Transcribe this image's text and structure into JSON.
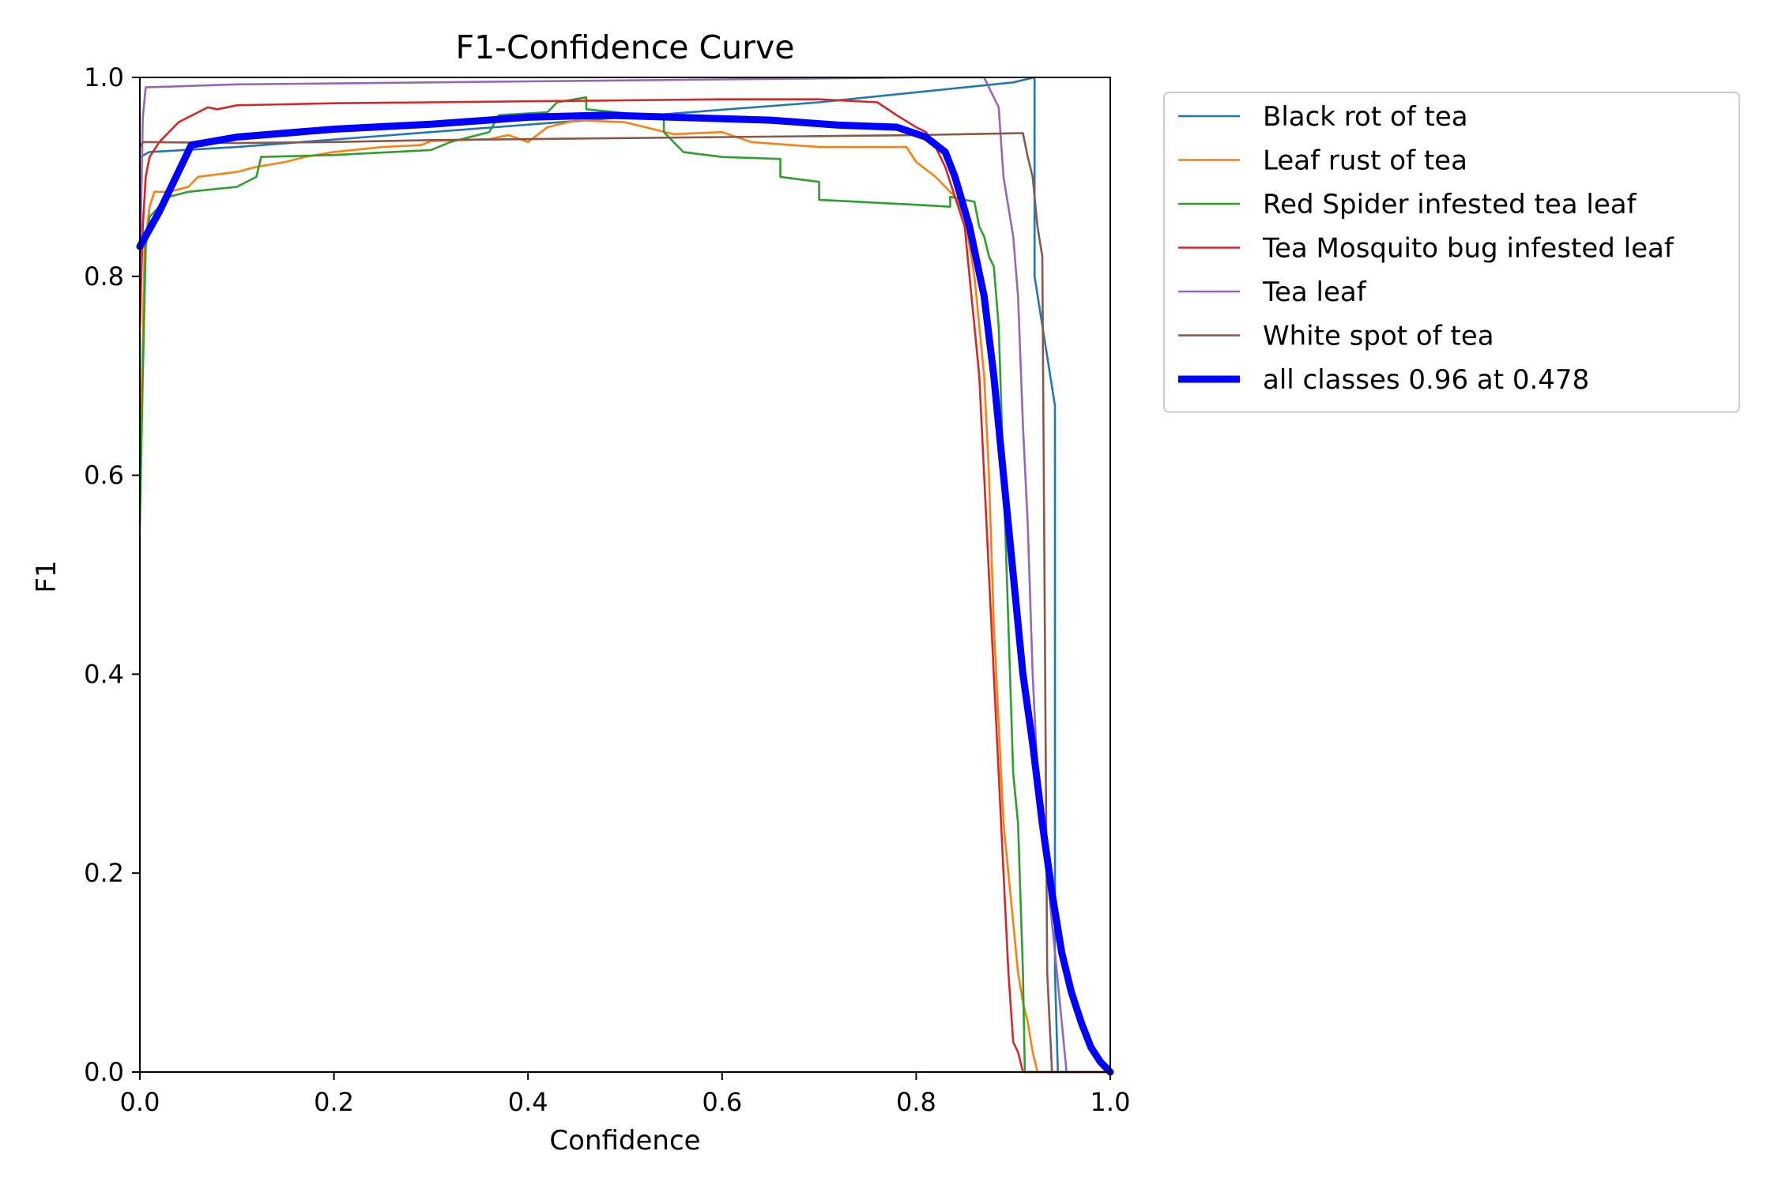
{
  "chart_data": {
    "type": "line",
    "title": "F1-Confidence Curve",
    "xlabel": "Confidence",
    "ylabel": "F1",
    "xlim": [
      0.0,
      1.0
    ],
    "ylim": [
      0.0,
      1.0
    ],
    "grid": false,
    "legend_position": "outside-right",
    "xticks": [
      {
        "value": 0.0,
        "label": "0.0"
      },
      {
        "value": 0.2,
        "label": "0.2"
      },
      {
        "value": 0.4,
        "label": "0.4"
      },
      {
        "value": 0.6,
        "label": "0.6"
      },
      {
        "value": 0.8,
        "label": "0.8"
      },
      {
        "value": 1.0,
        "label": "1.0"
      }
    ],
    "yticks": [
      {
        "value": 0.0,
        "label": "0.0"
      },
      {
        "value": 0.2,
        "label": "0.2"
      },
      {
        "value": 0.4,
        "label": "0.4"
      },
      {
        "value": 0.6,
        "label": "0.6"
      },
      {
        "value": 0.8,
        "label": "0.8"
      },
      {
        "value": 1.0,
        "label": "1.0"
      }
    ],
    "series": [
      {
        "name": "Black rot of tea",
        "color": "#1f77b4",
        "emphasis": false,
        "points": [
          [
            0.0,
            0.92
          ],
          [
            0.01,
            0.925
          ],
          [
            0.1,
            0.93
          ],
          [
            0.3,
            0.945
          ],
          [
            0.5,
            0.96
          ],
          [
            0.7,
            0.975
          ],
          [
            0.9,
            0.995
          ],
          [
            0.922,
            1.0
          ],
          [
            0.922,
            0.8
          ],
          [
            0.943,
            0.67
          ],
          [
            0.943,
            0.1
          ],
          [
            0.946,
            0.0
          ],
          [
            1.0,
            0.0
          ]
        ]
      },
      {
        "name": "Leaf rust of tea",
        "color": "#ff7f0e",
        "emphasis": false,
        "points": [
          [
            0.0,
            0.6
          ],
          [
            0.005,
            0.83
          ],
          [
            0.01,
            0.87
          ],
          [
            0.015,
            0.885
          ],
          [
            0.03,
            0.885
          ],
          [
            0.05,
            0.89
          ],
          [
            0.06,
            0.9
          ],
          [
            0.1,
            0.905
          ],
          [
            0.12,
            0.91
          ],
          [
            0.15,
            0.915
          ],
          [
            0.17,
            0.92
          ],
          [
            0.2,
            0.925
          ],
          [
            0.25,
            0.93
          ],
          [
            0.29,
            0.932
          ],
          [
            0.3,
            0.936
          ],
          [
            0.36,
            0.938
          ],
          [
            0.38,
            0.942
          ],
          [
            0.4,
            0.935
          ],
          [
            0.42,
            0.95
          ],
          [
            0.45,
            0.957
          ],
          [
            0.5,
            0.955
          ],
          [
            0.55,
            0.943
          ],
          [
            0.6,
            0.945
          ],
          [
            0.63,
            0.935
          ],
          [
            0.7,
            0.93
          ],
          [
            0.79,
            0.93
          ],
          [
            0.8,
            0.915
          ],
          [
            0.82,
            0.9
          ],
          [
            0.84,
            0.88
          ],
          [
            0.85,
            0.86
          ],
          [
            0.86,
            0.8
          ],
          [
            0.87,
            0.7
          ],
          [
            0.875,
            0.6
          ],
          [
            0.88,
            0.45
          ],
          [
            0.885,
            0.35
          ],
          [
            0.89,
            0.25
          ],
          [
            0.9,
            0.15
          ],
          [
            0.905,
            0.1
          ],
          [
            0.91,
            0.07
          ],
          [
            0.915,
            0.05
          ],
          [
            0.92,
            0.02
          ],
          [
            0.925,
            0.0
          ],
          [
            1.0,
            0.0
          ]
        ]
      },
      {
        "name": "Red Spider infested tea leaf",
        "color": "#2ca02c",
        "emphasis": false,
        "points": [
          [
            0.0,
            0.55
          ],
          [
            0.003,
            0.7
          ],
          [
            0.006,
            0.83
          ],
          [
            0.01,
            0.86
          ],
          [
            0.02,
            0.87
          ],
          [
            0.03,
            0.88
          ],
          [
            0.05,
            0.885
          ],
          [
            0.1,
            0.89
          ],
          [
            0.12,
            0.9
          ],
          [
            0.125,
            0.92
          ],
          [
            0.2,
            0.922
          ],
          [
            0.3,
            0.927
          ],
          [
            0.32,
            0.935
          ],
          [
            0.36,
            0.945
          ],
          [
            0.37,
            0.962
          ],
          [
            0.42,
            0.965
          ],
          [
            0.43,
            0.975
          ],
          [
            0.46,
            0.98
          ],
          [
            0.46,
            0.968
          ],
          [
            0.54,
            0.96
          ],
          [
            0.54,
            0.945
          ],
          [
            0.56,
            0.925
          ],
          [
            0.6,
            0.92
          ],
          [
            0.66,
            0.918
          ],
          [
            0.66,
            0.9
          ],
          [
            0.7,
            0.895
          ],
          [
            0.7,
            0.877
          ],
          [
            0.8,
            0.872
          ],
          [
            0.835,
            0.87
          ],
          [
            0.835,
            0.88
          ],
          [
            0.86,
            0.875
          ],
          [
            0.865,
            0.85
          ],
          [
            0.87,
            0.84
          ],
          [
            0.875,
            0.82
          ],
          [
            0.88,
            0.81
          ],
          [
            0.885,
            0.75
          ],
          [
            0.89,
            0.6
          ],
          [
            0.895,
            0.45
          ],
          [
            0.9,
            0.3
          ],
          [
            0.905,
            0.25
          ],
          [
            0.91,
            0.1
          ],
          [
            0.912,
            0.0
          ],
          [
            1.0,
            0.0
          ]
        ]
      },
      {
        "name": "Tea Mosquito bug infested leaf",
        "color": "#d62728",
        "emphasis": false,
        "points": [
          [
            0.0,
            0.75
          ],
          [
            0.003,
            0.85
          ],
          [
            0.006,
            0.9
          ],
          [
            0.01,
            0.92
          ],
          [
            0.02,
            0.935
          ],
          [
            0.03,
            0.945
          ],
          [
            0.04,
            0.955
          ],
          [
            0.05,
            0.96
          ],
          [
            0.06,
            0.965
          ],
          [
            0.07,
            0.97
          ],
          [
            0.08,
            0.968
          ],
          [
            0.1,
            0.972
          ],
          [
            0.15,
            0.973
          ],
          [
            0.2,
            0.974
          ],
          [
            0.3,
            0.975
          ],
          [
            0.4,
            0.976
          ],
          [
            0.5,
            0.977
          ],
          [
            0.6,
            0.978
          ],
          [
            0.7,
            0.978
          ],
          [
            0.76,
            0.975
          ],
          [
            0.78,
            0.962
          ],
          [
            0.8,
            0.95
          ],
          [
            0.81,
            0.945
          ],
          [
            0.82,
            0.93
          ],
          [
            0.83,
            0.91
          ],
          [
            0.84,
            0.88
          ],
          [
            0.85,
            0.85
          ],
          [
            0.855,
            0.8
          ],
          [
            0.86,
            0.75
          ],
          [
            0.865,
            0.7
          ],
          [
            0.87,
            0.6
          ],
          [
            0.875,
            0.5
          ],
          [
            0.88,
            0.4
          ],
          [
            0.885,
            0.3
          ],
          [
            0.89,
            0.2
          ],
          [
            0.895,
            0.1
          ],
          [
            0.9,
            0.03
          ],
          [
            0.905,
            0.02
          ],
          [
            0.91,
            0.0
          ],
          [
            1.0,
            0.0
          ]
        ]
      },
      {
        "name": "Tea leaf",
        "color": "#9467bd",
        "emphasis": false,
        "points": [
          [
            0.0,
            0.8
          ],
          [
            0.003,
            0.96
          ],
          [
            0.006,
            0.99
          ],
          [
            0.1,
            0.993
          ],
          [
            0.2,
            0.994
          ],
          [
            0.4,
            0.996
          ],
          [
            0.6,
            0.998
          ],
          [
            0.8,
            1.0
          ],
          [
            0.87,
            1.0
          ],
          [
            0.875,
            0.99
          ],
          [
            0.885,
            0.97
          ],
          [
            0.89,
            0.9
          ],
          [
            0.9,
            0.84
          ],
          [
            0.905,
            0.78
          ],
          [
            0.91,
            0.65
          ],
          [
            0.915,
            0.55
          ],
          [
            0.92,
            0.4
          ],
          [
            0.925,
            0.3
          ],
          [
            0.93,
            0.25
          ],
          [
            0.935,
            0.2
          ],
          [
            0.94,
            0.15
          ],
          [
            0.945,
            0.1
          ],
          [
            0.95,
            0.05
          ],
          [
            0.955,
            0.0
          ],
          [
            1.0,
            0.0
          ]
        ]
      },
      {
        "name": "White spot of tea",
        "color": "#8c564b",
        "emphasis": false,
        "points": [
          [
            0.0,
            0.93
          ],
          [
            0.003,
            0.935
          ],
          [
            0.1,
            0.934
          ],
          [
            0.2,
            0.935
          ],
          [
            0.3,
            0.937
          ],
          [
            0.4,
            0.938
          ],
          [
            0.5,
            0.939
          ],
          [
            0.6,
            0.94
          ],
          [
            0.7,
            0.941
          ],
          [
            0.8,
            0.942
          ],
          [
            0.91,
            0.944
          ],
          [
            0.915,
            0.92
          ],
          [
            0.92,
            0.9
          ],
          [
            0.925,
            0.85
          ],
          [
            0.93,
            0.82
          ],
          [
            0.935,
            0.1
          ],
          [
            0.94,
            0.0
          ],
          [
            1.0,
            0.0
          ]
        ]
      },
      {
        "name": "all classes 0.96 at 0.478",
        "color": "#0000ff",
        "emphasis": true,
        "points": [
          [
            0.0,
            0.83
          ],
          [
            0.02,
            0.865
          ],
          [
            0.053,
            0.932
          ],
          [
            0.1,
            0.94
          ],
          [
            0.2,
            0.948
          ],
          [
            0.3,
            0.953
          ],
          [
            0.4,
            0.96
          ],
          [
            0.478,
            0.962
          ],
          [
            0.55,
            0.96
          ],
          [
            0.65,
            0.957
          ],
          [
            0.72,
            0.952
          ],
          [
            0.78,
            0.95
          ],
          [
            0.81,
            0.94
          ],
          [
            0.83,
            0.925
          ],
          [
            0.84,
            0.9
          ],
          [
            0.855,
            0.85
          ],
          [
            0.87,
            0.78
          ],
          [
            0.88,
            0.7
          ],
          [
            0.89,
            0.6
          ],
          [
            0.9,
            0.5
          ],
          [
            0.91,
            0.4
          ],
          [
            0.92,
            0.33
          ],
          [
            0.93,
            0.25
          ],
          [
            0.94,
            0.18
          ],
          [
            0.95,
            0.12
          ],
          [
            0.96,
            0.08
          ],
          [
            0.97,
            0.05
          ],
          [
            0.98,
            0.025
          ],
          [
            0.99,
            0.01
          ],
          [
            1.0,
            0.0
          ]
        ]
      }
    ]
  }
}
